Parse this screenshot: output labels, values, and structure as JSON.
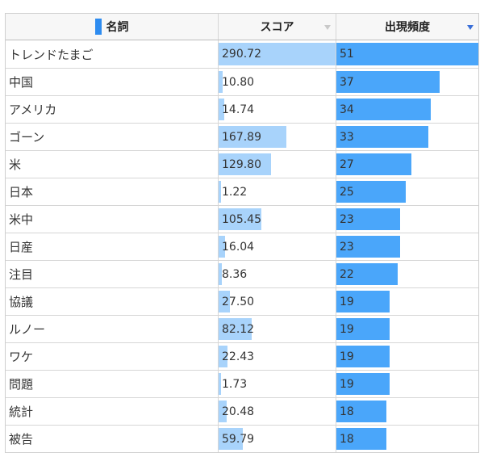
{
  "header": {
    "col_name": "名詞",
    "col_score": "スコア",
    "col_freq": "出現頻度",
    "sort_column": "出現頻度",
    "sort_direction": "descending"
  },
  "max_score": 290.72,
  "max_freq": 51,
  "colors": {
    "score_bar": "#a8d3fb",
    "freq_bar": "#4aa6fa",
    "marker": "#2e8cf0"
  },
  "rows": [
    {
      "name": "トレンドたまご",
      "score": "290.72",
      "freq": "51"
    },
    {
      "name": "中国",
      "score": "10.80",
      "freq": "37"
    },
    {
      "name": "アメリカ",
      "score": "14.74",
      "freq": "34"
    },
    {
      "name": "ゴーン",
      "score": "167.89",
      "freq": "33"
    },
    {
      "name": "米",
      "score": "129.80",
      "freq": "27"
    },
    {
      "name": "日本",
      "score": "1.22",
      "freq": "25"
    },
    {
      "name": "米中",
      "score": "105.45",
      "freq": "23"
    },
    {
      "name": "日産",
      "score": "16.04",
      "freq": "23"
    },
    {
      "name": "注目",
      "score": "8.36",
      "freq": "22"
    },
    {
      "name": "協議",
      "score": "27.50",
      "freq": "19"
    },
    {
      "name": "ルノー",
      "score": "82.12",
      "freq": "19"
    },
    {
      "name": "ワケ",
      "score": "22.43",
      "freq": "19"
    },
    {
      "name": "問題",
      "score": "1.73",
      "freq": "19"
    },
    {
      "name": "統計",
      "score": "20.48",
      "freq": "18"
    },
    {
      "name": "被告",
      "score": "59.79",
      "freq": "18"
    }
  ]
}
